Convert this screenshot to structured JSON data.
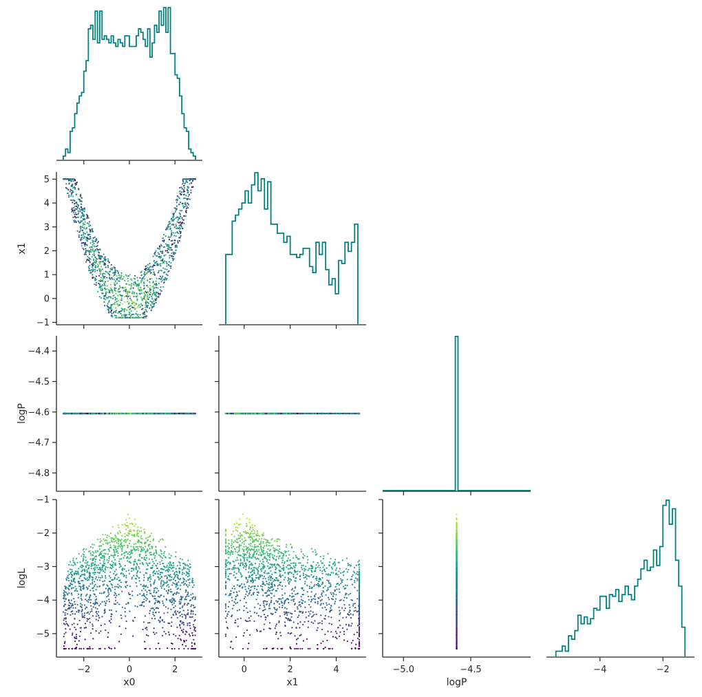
{
  "chart_data": {
    "type": "corner",
    "variables": [
      "x0",
      "x1",
      "logP",
      "logL"
    ],
    "colors": {
      "hist": "#008080",
      "axis": "#262626",
      "colormap": "viridis"
    },
    "panels": [
      {
        "row": 0,
        "col": 0,
        "type": "histogram",
        "variable": "x0",
        "xlim": [
          -3.2,
          3.2
        ],
        "xticks": [
          -2,
          0,
          2
        ],
        "bin_edges": [
          -2.9,
          -2.8,
          -2.7,
          -2.6,
          -2.5,
          -2.4,
          -2.3,
          -2.2,
          -2.1,
          -2.0,
          -1.9,
          -1.8,
          -1.7,
          -1.6,
          -1.5,
          -1.4,
          -1.3,
          -1.2,
          -1.1,
          -1.0,
          -0.9,
          -0.8,
          -0.7,
          -0.6,
          -0.5,
          -0.4,
          -0.3,
          -0.2,
          -0.1,
          0.0,
          0.1,
          0.2,
          0.3,
          0.4,
          0.5,
          0.6,
          0.7,
          0.8,
          0.9,
          1.0,
          1.1,
          1.2,
          1.3,
          1.4,
          1.5,
          1.6,
          1.7,
          1.8,
          1.9,
          2.0,
          2.1,
          2.2,
          2.3,
          2.4,
          2.5,
          2.6,
          2.7,
          2.8,
          2.9
        ],
        "counts": [
          1,
          3,
          2,
          8,
          9,
          13,
          16,
          18,
          19,
          25,
          28,
          37,
          38,
          34,
          42,
          33,
          42,
          34,
          35,
          34,
          33,
          35,
          33,
          32,
          34,
          33,
          32,
          35,
          35,
          32,
          32,
          32,
          35,
          37,
          36,
          34,
          32,
          37,
          29,
          33,
          38,
          36,
          42,
          38,
          43,
          36,
          43,
          30,
          30,
          24,
          23,
          18,
          13,
          9,
          8,
          3,
          2,
          1
        ]
      },
      {
        "row": 1,
        "col": 0,
        "type": "scatter",
        "xvar": "x0",
        "yvar": "x1",
        "xlim": [
          -3.2,
          3.2
        ],
        "ylim": [
          -1.1,
          5.3
        ],
        "xticks": [
          -2,
          0,
          2
        ],
        "yticks": [
          -1,
          0,
          1,
          2,
          3,
          4,
          5
        ],
        "yticklabels": [
          "−1",
          "0",
          "1",
          "2",
          "3",
          "4",
          "5"
        ],
        "description_of_shape": "valley: x1 ≈ (x0^2 − 1.6) band, x1 from −0.8 to 5, colored by logL",
        "ylabel": "x1"
      },
      {
        "row": 1,
        "col": 1,
        "type": "histogram",
        "variable": "x1",
        "xlim": [
          -1.1,
          5.3
        ],
        "xticks": [
          0,
          2,
          4
        ],
        "bin_edges": [
          -0.8,
          -0.66,
          -0.52,
          -0.38,
          -0.24,
          -0.1,
          0.04,
          0.18,
          0.32,
          0.46,
          0.6,
          0.74,
          0.88,
          1.02,
          1.16,
          1.3,
          1.44,
          1.58,
          1.72,
          1.86,
          2.0,
          2.14,
          2.28,
          2.42,
          2.56,
          2.7,
          2.84,
          2.98,
          3.12,
          3.26,
          3.4,
          3.54,
          3.68,
          3.82,
          3.96,
          4.1,
          4.24,
          4.38,
          4.52,
          4.66,
          4.8,
          4.94
        ],
        "counts": [
          2.3,
          2.3,
          3.4,
          3.6,
          3.8,
          4.0,
          4.4,
          4.0,
          4.6,
          5.0,
          4.4,
          4.8,
          3.8,
          4.7,
          3.3,
          3.3,
          3.0,
          3.0,
          2.7,
          2.9,
          2.3,
          2.3,
          2.2,
          2.3,
          2.5,
          2.5,
          1.9,
          1.7,
          2.7,
          2.3,
          2.7,
          1.8,
          1.3,
          1.5,
          1.0,
          2.1,
          2.0,
          2.7,
          2.4,
          2.7,
          3.3
        ]
      },
      {
        "row": 2,
        "col": 0,
        "type": "scatter",
        "xvar": "x0",
        "yvar": "logP",
        "xlim": [
          -3.2,
          3.2
        ],
        "ylim": [
          -4.86,
          -4.35
        ],
        "xticks": [
          -2,
          0,
          2
        ],
        "yticks": [
          -4.8,
          -4.7,
          -4.6,
          -4.5,
          -4.4
        ],
        "yticklabels": [
          "−4.8",
          "−4.7",
          "−4.6",
          "−4.5",
          "−4.4"
        ],
        "constant_y": -4.605,
        "ylabel": "logP"
      },
      {
        "row": 2,
        "col": 1,
        "type": "scatter",
        "xvar": "x1",
        "yvar": "logP",
        "xlim": [
          -1.1,
          5.3
        ],
        "ylim": [
          -4.86,
          -4.35
        ],
        "xticks": [
          0,
          2,
          4
        ],
        "yticks": [
          -4.8,
          -4.7,
          -4.6,
          -4.5,
          -4.4
        ],
        "constant_y": -4.605
      },
      {
        "row": 2,
        "col": 2,
        "type": "histogram",
        "variable": "logP",
        "xlim": [
          -5.155,
          -4.055
        ],
        "xticks": [
          -5.0,
          -4.5
        ],
        "bin_edges": [
          -4.615,
          -4.595
        ],
        "counts": [
          1
        ]
      },
      {
        "row": 3,
        "col": 0,
        "type": "scatter",
        "xvar": "x0",
        "yvar": "logL",
        "xlim": [
          -3.2,
          3.2
        ],
        "ylim": [
          -5.7,
          -1.0
        ],
        "xticks": [
          -2,
          0,
          2
        ],
        "xticklabels": [
          "−2",
          "0",
          "2"
        ],
        "yticks": [
          -5,
          -4,
          -3,
          -2,
          -1
        ],
        "yticklabels": [
          "−5",
          "−4",
          "−3",
          "−2",
          "−1"
        ],
        "xlabel": "x0",
        "ylabel": "logL"
      },
      {
        "row": 3,
        "col": 1,
        "type": "scatter",
        "xvar": "x1",
        "yvar": "logL",
        "xlim": [
          -1.1,
          5.3
        ],
        "ylim": [
          -5.7,
          -1.0
        ],
        "xticks": [
          0,
          2,
          4
        ],
        "xticklabels": [
          "0",
          "2",
          "4"
        ],
        "yticks": [
          -5,
          -4,
          -3,
          -2,
          -1
        ],
        "xlabel": "x1"
      },
      {
        "row": 3,
        "col": 2,
        "type": "scatter",
        "xvar": "logP",
        "yvar": "logL",
        "xlim": [
          -5.155,
          -4.055
        ],
        "ylim": [
          -5.7,
          -1.0
        ],
        "xticks": [
          -5.0,
          -4.5
        ],
        "xticklabels": [
          "−5.0",
          "−4.5"
        ],
        "yticks": [
          -5,
          -4,
          -3,
          -2,
          -1
        ],
        "constant_x": -4.605,
        "xlabel": "logP"
      },
      {
        "row": 3,
        "col": 3,
        "type": "histogram",
        "variable": "logL",
        "xlim": [
          -5.7,
          -1.0
        ],
        "xticks": [
          -4,
          -2
        ],
        "xticklabels": [
          "−4",
          "−2"
        ],
        "bin_edges": [
          -5.4,
          -5.3,
          -5.2,
          -5.1,
          -5.0,
          -4.9,
          -4.8,
          -4.7,
          -4.6,
          -4.5,
          -4.4,
          -4.3,
          -4.2,
          -4.1,
          -4.0,
          -3.9,
          -3.8,
          -3.7,
          -3.6,
          -3.5,
          -3.4,
          -3.3,
          -3.2,
          -3.1,
          -3.0,
          -2.9,
          -2.8,
          -2.7,
          -2.6,
          -2.5,
          -2.4,
          -2.3,
          -2.2,
          -2.1,
          -2.0,
          -1.9,
          -1.8,
          -1.7,
          -1.6,
          -1.5,
          -1.4,
          -1.3
        ],
        "counts": [
          0.3,
          0.3,
          0.6,
          0.3,
          1.2,
          1.0,
          1.5,
          2.4,
          1.9,
          2.3,
          1.9,
          2.2,
          2.8,
          2.7,
          3.5,
          3.5,
          2.8,
          3.6,
          3.5,
          3.9,
          3.2,
          3.6,
          4.1,
          3.6,
          3.3,
          4.1,
          4.5,
          5.1,
          5.6,
          5.0,
          5.2,
          6.2,
          5.3,
          6.4,
          8.8,
          9.1,
          7.7,
          8.6,
          5.6,
          4.1,
          1.7
        ]
      }
    ]
  }
}
